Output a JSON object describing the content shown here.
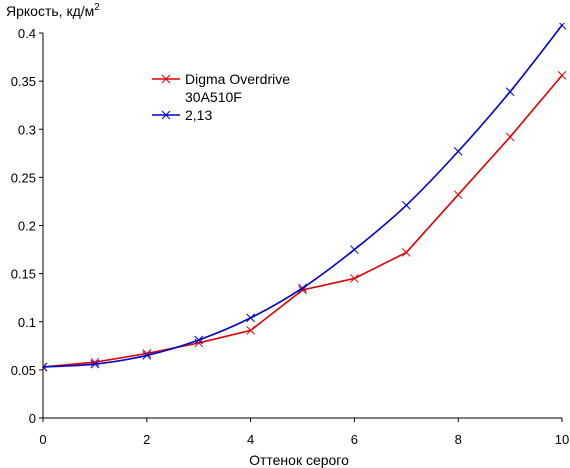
{
  "chart_data": {
    "type": "line",
    "title": "",
    "xlabel": "Оттенок серого",
    "ylabel": "Яркость, кд/м",
    "ylabel_sup": "2",
    "xlim": [
      0,
      10
    ],
    "ylim": [
      0,
      0.4
    ],
    "x_ticks": [
      "0",
      "2",
      "4",
      "6",
      "8",
      "10"
    ],
    "y_ticks": [
      "0",
      "0.05",
      "0.1",
      "0.15",
      "0.2",
      "0.25",
      "0.3",
      "0.35",
      "0.4"
    ],
    "grid": false,
    "legend_position": "top-left",
    "series": [
      {
        "name_lines": [
          "Digma Overdrive",
          "30A510F"
        ],
        "color": "#e00000",
        "x": [
          0,
          1,
          2,
          3,
          4,
          5,
          6,
          7,
          8,
          9,
          10
        ],
        "y": [
          0.053,
          0.058,
          0.067,
          0.078,
          0.091,
          0.133,
          0.145,
          0.172,
          0.232,
          0.292,
          0.356
        ]
      },
      {
        "name_lines": [
          "2,13"
        ],
        "color": "#0000cc",
        "x": [
          0,
          1,
          2,
          3,
          4,
          5,
          6,
          7,
          8,
          9,
          10
        ],
        "y": [
          0.053,
          0.056,
          0.065,
          0.081,
          0.104,
          0.135,
          0.175,
          0.221,
          0.277,
          0.339,
          0.408
        ]
      }
    ]
  }
}
